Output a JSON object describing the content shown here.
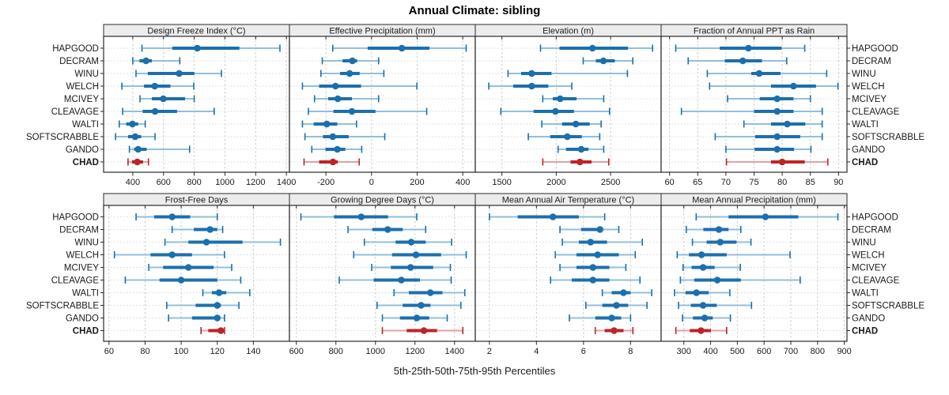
{
  "title": "Annual Climate: sibling",
  "caption": "5th-25th-50th-75th-95th Percentiles",
  "colors": {
    "blue": "#1b6fae",
    "blue_light": "#92bfdd",
    "red": "#bb2428",
    "red_light": "#dfa2a2",
    "strip_bg": "#ececec",
    "panel_border": "#2a2a2a",
    "grid": "#cbcbcb",
    "row_guide": "#d8d8d8",
    "tick": "#2a2a2a",
    "text": "#1a1a1a"
  },
  "highlight_station": "CHAD",
  "stations": [
    "HAPGOOD",
    "DECRAM",
    "WINU",
    "WELCH",
    "MCIVEY",
    "CLEAVAGE",
    "WALTI",
    "SOFTSCRABBLE",
    "GANDO",
    "CHAD"
  ],
  "chart_data": {
    "type": "dotplot-percentiles",
    "title": "Annual Climate: sibling",
    "xlabel": "5th-25th-50th-75th-95th Percentiles",
    "percentile_levels": [
      5,
      25,
      50,
      75,
      95
    ],
    "panel_layout": {
      "rows": 2,
      "cols": 4
    },
    "legend_position": "none",
    "grid": "dashed vertical at ticks, dotted horizontal per station",
    "stations": [
      "HAPGOOD",
      "DECRAM",
      "WINU",
      "WELCH",
      "MCIVEY",
      "CLEAVAGE",
      "WALTI",
      "SOFTSCRABBLE",
      "GANDO",
      "CHAD"
    ],
    "panels": [
      {
        "title": "Design Freeze Index (°C)",
        "xlim": [
          210,
          1420
        ],
        "ticks": [
          400,
          600,
          800,
          1000,
          1200,
          1400
        ],
        "values": {
          "HAPGOOD": [
            460,
            657,
            820,
            1094,
            1358
          ],
          "DECRAM": [
            400,
            443,
            486,
            524,
            706
          ],
          "WINU": [
            421,
            498,
            702,
            801,
            977
          ],
          "WELCH": [
            329,
            473,
            543,
            645,
            797
          ],
          "MCIVEY": [
            447,
            524,
            599,
            740,
            800
          ],
          "CLEAVAGE": [
            334,
            464,
            545,
            688,
            930
          ],
          "WALTI": [
            312,
            357,
            398,
            435,
            481
          ],
          "SOFTSCRABBLE": [
            288,
            369,
            416,
            455,
            545
          ],
          "GANDO": [
            378,
            409,
            435,
            490,
            770
          ],
          "CHAD": [
            369,
            395,
            429,
            467,
            502
          ]
        }
      },
      {
        "title": "Effective Precipitation (mm)",
        "xlim": [
          -360,
          455
        ],
        "ticks": [
          -200,
          0,
          200,
          400
        ],
        "values": {
          "HAPGOOD": [
            -170,
            -17,
            133,
            254,
            415
          ],
          "DECRAM": [
            -216,
            -127,
            -84,
            -63,
            31
          ],
          "WINU": [
            -222,
            -138,
            -96,
            -52,
            54
          ],
          "WELCH": [
            -303,
            -230,
            -158,
            -46,
            199
          ],
          "MCIVEY": [
            -250,
            -190,
            -148,
            -86,
            31
          ],
          "CLEAVAGE": [
            -277,
            -167,
            -86,
            17,
            242
          ],
          "WALTI": [
            -303,
            -254,
            -196,
            -150,
            -66
          ],
          "SOFTSCRABBLE": [
            -292,
            -213,
            -170,
            -100,
            58
          ],
          "GANDO": [
            -262,
            -202,
            -150,
            -115,
            -43
          ],
          "CHAD": [
            -296,
            -230,
            -169,
            -148,
            -54
          ]
        }
      },
      {
        "title": "Elevation (m)",
        "xlim": [
          1255,
          2965
        ],
        "ticks": [
          1500,
          2000,
          2500
        ],
        "values": {
          "HAPGOOD": [
            1855,
            2030,
            2333,
            2660,
            2886
          ],
          "DECRAM": [
            2248,
            2364,
            2434,
            2539,
            2704
          ],
          "WINU": [
            1556,
            1677,
            1774,
            1956,
            2655
          ],
          "WELCH": [
            1379,
            1604,
            1774,
            1927,
            2143
          ],
          "MCIVEY": [
            1876,
            1968,
            2036,
            2187,
            2437
          ],
          "CLEAVAGE": [
            1490,
            1791,
            1993,
            2163,
            2490
          ],
          "WALTI": [
            1867,
            2053,
            2180,
            2308,
            2413
          ],
          "SOFTSCRABBLE": [
            1743,
            1944,
            2102,
            2235,
            2400
          ],
          "GANDO": [
            2017,
            2090,
            2230,
            2296,
            2437
          ],
          "CHAD": [
            1876,
            2131,
            2218,
            2325,
            2483
          ]
        }
      },
      {
        "title": "Fraction of Annual PPT as Rain",
        "xlim": [
          58.5,
          91.5
        ],
        "ticks": [
          60,
          65,
          70,
          75,
          80,
          85,
          90
        ],
        "values": {
          "HAPGOOD": [
            61.1,
            68.9,
            74.0,
            79.9,
            84.0
          ],
          "DECRAM": [
            63.3,
            69.8,
            73.0,
            76.4,
            80.8
          ],
          "WINU": [
            66.7,
            74.5,
            75.9,
            79.7,
            87.9
          ],
          "WELCH": [
            67.1,
            78.0,
            82.0,
            86.0,
            89.9
          ],
          "MCIVEY": [
            70.3,
            76.0,
            79.1,
            82.0,
            85.0
          ],
          "CLEAVAGE": [
            62.1,
            75.0,
            79.1,
            82.0,
            87.1
          ],
          "WALTI": [
            73.2,
            78.0,
            80.9,
            84.1,
            87.1
          ],
          "SOFTSCRABBLE": [
            68.1,
            75.2,
            79.1,
            83.2,
            87.1
          ],
          "GANDO": [
            70.0,
            75.1,
            79.1,
            82.1,
            85.1
          ],
          "CHAD": [
            70.1,
            78.0,
            80.0,
            84.0,
            88.1
          ]
        }
      },
      {
        "title": "Frost-Free Days",
        "xlim": [
          57,
          160
        ],
        "ticks": [
          60,
          80,
          100,
          120,
          140
        ],
        "values": {
          "HAPGOOD": [
            75,
            85,
            95,
            105,
            120
          ],
          "DECRAM": [
            95,
            107,
            116,
            120,
            123
          ],
          "WINU": [
            91,
            104,
            114,
            134,
            155
          ],
          "WELCH": [
            63,
            83,
            95,
            106,
            124
          ],
          "MCIVEY": [
            82,
            90,
            104,
            118,
            128
          ],
          "CLEAVAGE": [
            69,
            88,
            100,
            120,
            133
          ],
          "WALTI": [
            112,
            117,
            121,
            125,
            138
          ],
          "SOFTSCRABBLE": [
            92,
            108,
            120,
            122,
            132
          ],
          "GANDO": [
            93,
            106,
            120,
            121,
            124
          ],
          "CHAD": [
            111,
            115,
            122,
            123,
            124
          ]
        }
      },
      {
        "title": "Growing Degree Days (°C)",
        "xlim": [
          565,
          1505
        ],
        "ticks": [
          600,
          800,
          1000,
          1200,
          1400
        ],
        "values": {
          "HAPGOOD": [
            623,
            790,
            928,
            1064,
            1209
          ],
          "DECRAM": [
            861,
            984,
            1062,
            1138,
            1254
          ],
          "WINU": [
            944,
            1102,
            1181,
            1254,
            1385
          ],
          "WELCH": [
            890,
            1084,
            1205,
            1332,
            1459
          ],
          "MCIVEY": [
            981,
            1078,
            1178,
            1292,
            1379
          ],
          "CLEAVAGE": [
            817,
            991,
            1131,
            1225,
            1383
          ],
          "WALTI": [
            1094,
            1169,
            1278,
            1339,
            1452
          ],
          "SOFTSCRABBLE": [
            1008,
            1138,
            1231,
            1278,
            1432
          ],
          "GANDO": [
            1035,
            1124,
            1209,
            1272,
            1363
          ],
          "CHAD": [
            1035,
            1158,
            1245,
            1312,
            1442
          ]
        }
      },
      {
        "title": "Mean Annual Air Temperature (°C)",
        "xlim": [
          1.4,
          9.3
        ],
        "ticks": [
          2,
          4,
          6,
          8
        ],
        "values": {
          "HAPGOOD": [
            2.0,
            3.2,
            4.7,
            5.8,
            6.9
          ],
          "DECRAM": [
            5.0,
            5.9,
            6.7,
            6.8,
            7.5
          ],
          "WINU": [
            5.1,
            5.8,
            6.3,
            7.0,
            8.5
          ],
          "WELCH": [
            4.8,
            5.7,
            6.6,
            7.5,
            8.2
          ],
          "MCIVEY": [
            5.0,
            5.7,
            6.4,
            7.1,
            7.8
          ],
          "CLEAVAGE": [
            4.6,
            5.5,
            6.4,
            7.1,
            8.4
          ],
          "WALTI": [
            6.8,
            7.2,
            7.7,
            8.0,
            8.9
          ],
          "SOFTSCRABBLE": [
            6.1,
            6.8,
            7.4,
            7.9,
            8.7
          ],
          "GANDO": [
            5.4,
            6.5,
            7.2,
            7.6,
            8.0
          ],
          "CHAD": [
            6.5,
            6.9,
            7.3,
            7.7,
            8.1
          ]
        }
      },
      {
        "title": "Mean Annual Precipitation (mm)",
        "xlim": [
          215,
          910
        ],
        "ticks": [
          300,
          400,
          500,
          600,
          700,
          800,
          900
        ],
        "values": {
          "HAPGOOD": [
            346,
            467,
            605,
            728,
            876
          ],
          "DECRAM": [
            309,
            373,
            431,
            467,
            513
          ],
          "WINU": [
            332,
            385,
            436,
            497,
            551
          ],
          "WELCH": [
            275,
            319,
            366,
            460,
            697
          ],
          "MCIVEY": [
            297,
            329,
            372,
            415,
            511
          ],
          "CLEAVAGE": [
            287,
            339,
            425,
            513,
            735
          ],
          "WALTI": [
            265,
            306,
            347,
            393,
            472
          ],
          "SOFTSCRABBLE": [
            280,
            326,
            372,
            423,
            553
          ],
          "GANDO": [
            295,
            334,
            378,
            408,
            474
          ],
          "CHAD": [
            270,
            322,
            364,
            401,
            460
          ]
        }
      }
    ]
  }
}
